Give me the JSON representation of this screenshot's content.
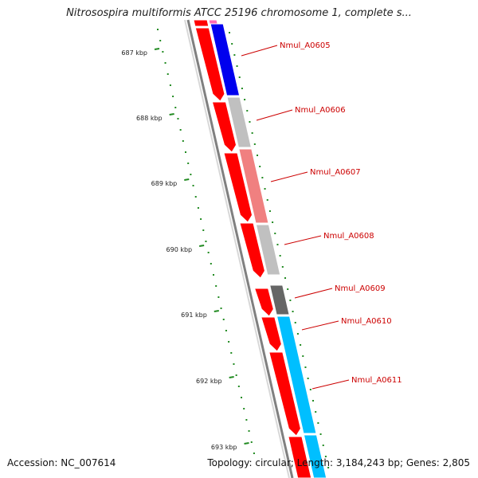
{
  "title": "Nitrosospira multiformis ATCC 25196 chromosome 1, complete s...",
  "footer": {
    "accession": "Accession: NC_007614",
    "summary": "Topology: circular; Length: 3,184,243 bp; Genes: 2,805"
  },
  "scale": {
    "labels": [
      "687 kbp",
      "688 kbp",
      "689 kbp",
      "690 kbp",
      "691 kbp",
      "692 kbp",
      "693 kbp"
    ]
  },
  "genes": [
    {
      "id": "Nmul_A0605",
      "color": "#0000ee"
    },
    {
      "id": "Nmul_A0606",
      "color": "#c0c0c0"
    },
    {
      "id": "Nmul_A0607",
      "color": "#f08080"
    },
    {
      "id": "Nmul_A0608",
      "color": "#c0c0c0"
    },
    {
      "id": "Nmul_A0609",
      "color": "#666666"
    },
    {
      "id": "Nmul_A0610",
      "color": "#00bfff"
    },
    {
      "id": "Nmul_A0611",
      "color": "#00bfff"
    }
  ],
  "colors": {
    "cds": "#ff0000",
    "label": "#cc0000",
    "tick": "#228b22",
    "backbone": "#808080"
  }
}
